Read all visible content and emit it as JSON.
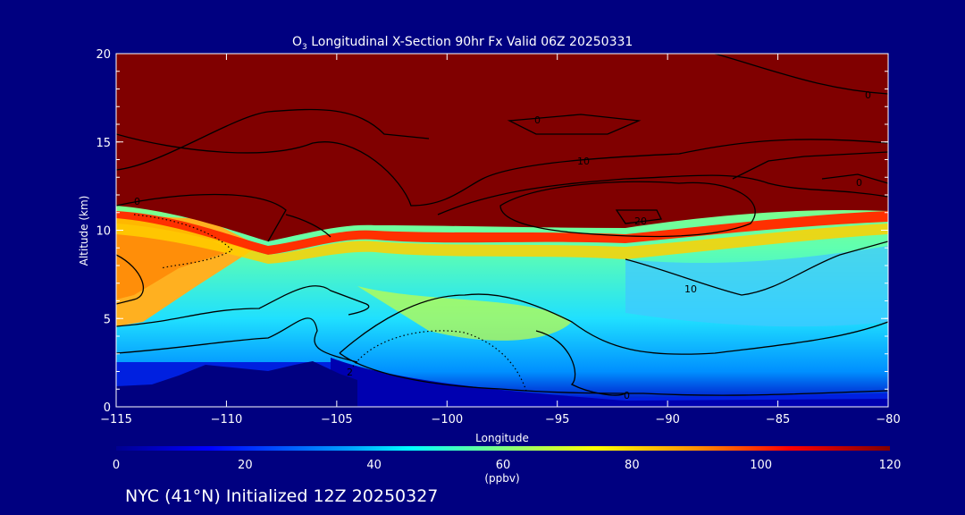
{
  "chart_data": {
    "type": "heatmap",
    "title_prefix": "O",
    "title_sub": "3",
    "title_rest": " Longitudinal X-Section 90hr  Fx Valid 06Z 20250331",
    "xlabel": "Longitude",
    "ylabel": "Altitude (km)",
    "xlim": [
      -115,
      -80
    ],
    "ylim": [
      0,
      20
    ],
    "x_ticks": [
      "-115",
      "-110",
      "-105",
      "-100",
      "-95",
      "-90",
      "-85",
      "-80"
    ],
    "y_ticks": [
      "0",
      "5",
      "10",
      "15",
      "20"
    ],
    "colorbar": {
      "range": [
        0,
        120
      ],
      "ticks": [
        "0",
        "20",
        "40",
        "60",
        "80",
        "100",
        "120"
      ],
      "unit": "(ppbv)"
    },
    "contour_labels": [
      "0",
      "10",
      "20",
      "0",
      "10",
      "0",
      "0",
      "2",
      "0"
    ],
    "field_note": "ozone mixing ratio vs longitude and altitude; stratospheric >120 ppbv above ~10 km, 30-70 ppbv in troposphere, terrain masked below ~2 km west of -105"
  },
  "footer": "NYC (41°N) Initialized 12Z 20250327"
}
